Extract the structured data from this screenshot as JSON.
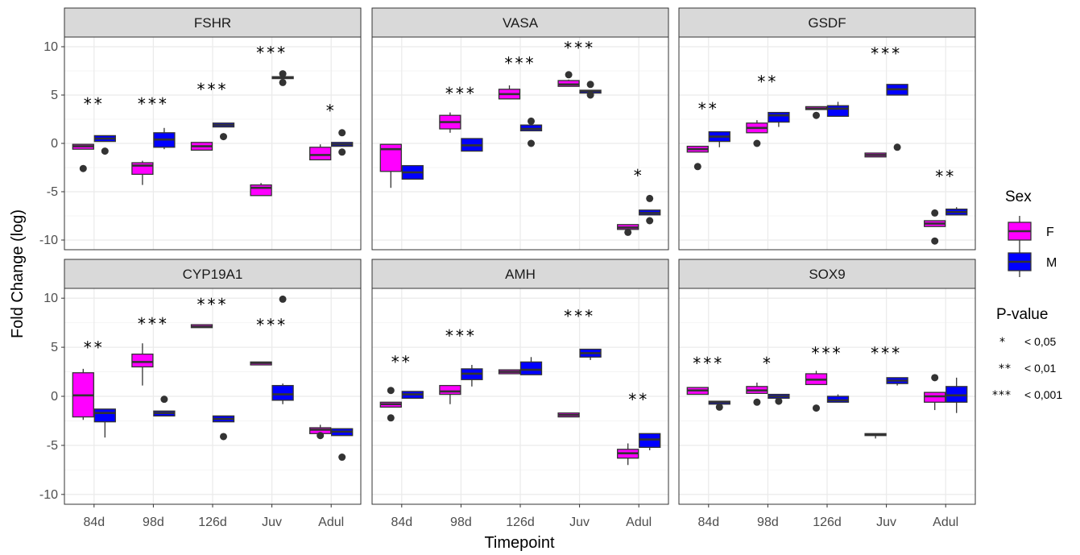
{
  "chart_data": {
    "type": "boxplot",
    "xlabel": "Timepoint",
    "ylabel": "Fold Change (log)",
    "categories": [
      "84d",
      "98d",
      "126d",
      "Juv",
      "Adul"
    ],
    "ylim": [
      -11,
      11
    ],
    "yticks": [
      -10,
      -5,
      0,
      5,
      10
    ],
    "grid": true,
    "colors": {
      "F": "#ff00ff",
      "M": "#0000ff",
      "strip_bg": "#d9d9d9",
      "panel_bg": "#ffffff",
      "grid": "#ebebeb"
    },
    "legend": {
      "title": "Sex",
      "entries": [
        {
          "label": "F",
          "color": "#ff00ff"
        },
        {
          "label": "M",
          "color": "#0000ff"
        }
      ],
      "placement": "right"
    },
    "pvalue_legend": {
      "title": "P-value",
      "entries": [
        {
          "stars": "*",
          "label": "< 0,05"
        },
        {
          "stars": "**",
          "label": "< 0,01"
        },
        {
          "stars": "***",
          "label": "< 0,001"
        }
      ]
    },
    "panels": [
      {
        "name": "FSHR",
        "boxes": {
          "F": [
            {
              "lo": -0.6,
              "q1": -0.6,
              "med": -0.3,
              "q3": -0.1,
              "hi": -0.1,
              "out": [
                -2.6
              ]
            },
            {
              "lo": -4.3,
              "q1": -3.2,
              "med": -2.3,
              "q3": -2.0,
              "hi": -1.8,
              "out": []
            },
            {
              "lo": -0.7,
              "q1": -0.7,
              "med": -0.3,
              "q3": 0.1,
              "hi": 0.1,
              "out": []
            },
            {
              "lo": -5.4,
              "q1": -5.4,
              "med": -4.6,
              "q3": -4.3,
              "hi": -4.1,
              "out": []
            },
            {
              "lo": -1.7,
              "q1": -1.7,
              "med": -1.2,
              "q3": -0.4,
              "hi": -0.1,
              "out": []
            }
          ],
          "M": [
            {
              "lo": 0.2,
              "q1": 0.2,
              "med": 0.5,
              "q3": 0.8,
              "hi": 0.8,
              "out": [
                -0.8
              ]
            },
            {
              "lo": -0.6,
              "q1": -0.4,
              "med": 0.4,
              "q3": 1.1,
              "hi": 1.6,
              "out": []
            },
            {
              "lo": 1.7,
              "q1": 1.7,
              "med": 1.9,
              "q3": 2.1,
              "hi": 2.1,
              "out": [
                0.7
              ]
            },
            {
              "lo": 6.6,
              "q1": 6.7,
              "med": 6.8,
              "q3": 6.9,
              "hi": 7.0,
              "out": [
                6.3,
                7.2
              ]
            },
            {
              "lo": -0.3,
              "q1": -0.3,
              "med": -0.1,
              "q3": 0.1,
              "hi": 0.1,
              "out": [
                1.1,
                -0.9
              ]
            }
          ]
        },
        "sig": [
          "**",
          "***",
          "***",
          "***",
          "*"
        ],
        "sig_y": [
          3.5,
          3.5,
          5.0,
          8.8,
          2.8
        ]
      },
      {
        "name": "VASA",
        "boxes": {
          "F": [
            {
              "lo": -4.6,
              "q1": -2.9,
              "med": -0.6,
              "q3": -0.1,
              "hi": -0.1,
              "out": []
            },
            {
              "lo": 1.1,
              "q1": 1.5,
              "med": 2.2,
              "q3": 2.9,
              "hi": 3.2,
              "out": []
            },
            {
              "lo": 4.6,
              "q1": 4.6,
              "med": 5.1,
              "q3": 5.6,
              "hi": 6.0,
              "out": []
            },
            {
              "lo": 5.9,
              "q1": 5.9,
              "med": 6.1,
              "q3": 6.5,
              "hi": 6.6,
              "out": [
                7.1
              ]
            },
            {
              "lo": -8.9,
              "q1": -8.9,
              "med": -8.7,
              "q3": -8.4,
              "hi": -8.4,
              "out": [
                -9.2
              ]
            }
          ],
          "M": [
            {
              "lo": -3.7,
              "q1": -3.7,
              "med": -3.0,
              "q3": -2.3,
              "hi": -2.3,
              "out": []
            },
            {
              "lo": -0.8,
              "q1": -0.8,
              "med": -0.2,
              "q3": 0.5,
              "hi": 0.5,
              "out": []
            },
            {
              "lo": 1.3,
              "q1": 1.3,
              "med": 1.5,
              "q3": 1.9,
              "hi": 1.9,
              "out": [
                2.3,
                0.0
              ]
            },
            {
              "lo": 5.2,
              "q1": 5.2,
              "med": 5.4,
              "q3": 5.5,
              "hi": 5.5,
              "out": [
                6.1,
                5.0
              ]
            },
            {
              "lo": -7.4,
              "q1": -7.4,
              "med": -7.2,
              "q3": -6.9,
              "hi": -6.9,
              "out": [
                -5.7,
                -8.0
              ]
            }
          ]
        },
        "sig": [
          "",
          "***",
          "***",
          "***",
          "*"
        ],
        "sig_y": [
          0,
          4.6,
          7.7,
          9.3,
          -3.9
        ]
      },
      {
        "name": "GSDF",
        "boxes": {
          "F": [
            {
              "lo": -0.9,
              "q1": -0.9,
              "med": -0.6,
              "q3": -0.3,
              "hi": -0.3,
              "out": [
                -2.4
              ]
            },
            {
              "lo": 1.1,
              "q1": 1.1,
              "med": 1.6,
              "q3": 2.1,
              "hi": 2.4,
              "out": [
                0.0
              ]
            },
            {
              "lo": 3.5,
              "q1": 3.5,
              "med": 3.6,
              "q3": 3.8,
              "hi": 3.8,
              "out": [
                2.9
              ]
            },
            {
              "lo": -1.4,
              "q1": -1.4,
              "med": -1.2,
              "q3": -1.0,
              "hi": -1.0,
              "out": []
            },
            {
              "lo": -8.6,
              "q1": -8.6,
              "med": -8.3,
              "q3": -8.0,
              "hi": -8.0,
              "out": [
                -7.2,
                -10.1
              ]
            }
          ],
          "M": [
            {
              "lo": -0.4,
              "q1": 0.2,
              "med": 0.7,
              "q3": 1.2,
              "hi": 1.2,
              "out": []
            },
            {
              "lo": 1.7,
              "q1": 2.2,
              "med": 2.9,
              "q3": 3.2,
              "hi": 3.2,
              "out": []
            },
            {
              "lo": 2.8,
              "q1": 2.8,
              "med": 3.6,
              "q3": 3.9,
              "hi": 4.3,
              "out": []
            },
            {
              "lo": 5.0,
              "q1": 5.0,
              "med": 5.6,
              "q3": 6.1,
              "hi": 6.1,
              "out": [
                -0.4
              ]
            },
            {
              "lo": -7.4,
              "q1": -7.4,
              "med": -7.1,
              "q3": -6.8,
              "hi": -6.6,
              "out": []
            }
          ]
        },
        "sig": [
          "**",
          "**",
          "",
          "***",
          "**"
        ],
        "sig_y": [
          3.0,
          5.8,
          0,
          8.7,
          -4.0
        ]
      },
      {
        "name": "CYP19A1",
        "boxes": {
          "F": [
            {
              "lo": -2.4,
              "q1": -2.1,
              "med": 0.1,
              "q3": 2.4,
              "hi": 2.8,
              "out": []
            },
            {
              "lo": 1.1,
              "q1": 3.0,
              "med": 3.5,
              "q3": 4.3,
              "hi": 5.4,
              "out": []
            },
            {
              "lo": 7.0,
              "q1": 7.0,
              "med": 7.1,
              "q3": 7.3,
              "hi": 7.3,
              "out": []
            },
            {
              "lo": 3.2,
              "q1": 3.2,
              "med": 3.4,
              "q3": 3.5,
              "hi": 3.5,
              "out": []
            },
            {
              "lo": -3.8,
              "q1": -3.8,
              "med": -3.4,
              "q3": -3.2,
              "hi": -2.9,
              "out": [
                -4.0
              ]
            }
          ],
          "M": [
            {
              "lo": -4.2,
              "q1": -2.6,
              "med": -1.7,
              "q3": -1.3,
              "hi": -1.3,
              "out": []
            },
            {
              "lo": -2.0,
              "q1": -2.0,
              "med": -1.7,
              "q3": -1.5,
              "hi": -1.5,
              "out": [
                -0.3
              ]
            },
            {
              "lo": -2.6,
              "q1": -2.6,
              "med": -2.3,
              "q3": -2.0,
              "hi": -2.0,
              "out": [
                -4.1
              ]
            },
            {
              "lo": -0.8,
              "q1": -0.4,
              "med": 0.2,
              "q3": 1.1,
              "hi": 1.3,
              "out": [
                9.9
              ]
            },
            {
              "lo": -4.0,
              "q1": -4.0,
              "med": -3.6,
              "q3": -3.3,
              "hi": -3.3,
              "out": [
                -6.2
              ]
            }
          ]
        },
        "sig": [
          "**",
          "***",
          "***",
          "***",
          ""
        ],
        "sig_y": [
          4.4,
          6.8,
          8.8,
          6.7,
          0
        ]
      },
      {
        "name": "AMH",
        "boxes": {
          "F": [
            {
              "lo": -1.1,
              "q1": -1.1,
              "med": -0.8,
              "q3": -0.6,
              "hi": -0.6,
              "out": [
                0.6,
                -2.2
              ]
            },
            {
              "lo": -0.8,
              "q1": 0.2,
              "med": 0.5,
              "q3": 1.1,
              "hi": 1.1,
              "out": []
            },
            {
              "lo": 2.3,
              "q1": 2.3,
              "med": 2.5,
              "q3": 2.7,
              "hi": 2.7,
              "out": []
            },
            {
              "lo": -2.1,
              "q1": -2.1,
              "med": -1.9,
              "q3": -1.7,
              "hi": -1.7,
              "out": []
            },
            {
              "lo": -7.0,
              "q1": -6.3,
              "med": -5.8,
              "q3": -5.4,
              "hi": -4.8,
              "out": []
            }
          ],
          "M": [
            {
              "lo": -0.2,
              "q1": -0.2,
              "med": 0.2,
              "q3": 0.5,
              "hi": 0.5,
              "out": []
            },
            {
              "lo": 1.0,
              "q1": 1.7,
              "med": 2.3,
              "q3": 2.8,
              "hi": 3.2,
              "out": []
            },
            {
              "lo": 2.2,
              "q1": 2.2,
              "med": 2.7,
              "q3": 3.5,
              "hi": 4.0,
              "out": []
            },
            {
              "lo": 3.7,
              "q1": 4.0,
              "med": 4.4,
              "q3": 4.8,
              "hi": 4.8,
              "out": []
            },
            {
              "lo": -5.5,
              "q1": -5.2,
              "med": -4.4,
              "q3": -3.8,
              "hi": -3.8,
              "out": []
            }
          ]
        },
        "sig": [
          "**",
          "***",
          "",
          "***",
          "**"
        ],
        "sig_y": [
          2.9,
          5.6,
          0,
          7.6,
          -0.9
        ],
        "sig_x_offset": [
          0,
          0,
          0,
          0,
          0
        ]
      },
      {
        "name": "SOX9",
        "boxes": {
          "F": [
            {
              "lo": 0.2,
              "q1": 0.2,
              "med": 0.6,
              "q3": 0.9,
              "hi": 0.9,
              "out": []
            },
            {
              "lo": 0.3,
              "q1": 0.3,
              "med": 0.6,
              "q3": 1.0,
              "hi": 1.4,
              "out": [
                -0.6
              ]
            },
            {
              "lo": 1.2,
              "q1": 1.2,
              "med": 1.7,
              "q3": 2.3,
              "hi": 2.6,
              "out": [
                -1.2
              ]
            },
            {
              "lo": -4.3,
              "q1": -4.0,
              "med": -3.9,
              "q3": -3.8,
              "hi": -3.8,
              "out": []
            },
            {
              "lo": -1.4,
              "q1": -0.6,
              "med": 0.0,
              "q3": 0.4,
              "hi": 0.4,
              "out": [
                1.9
              ]
            }
          ],
          "M": [
            {
              "lo": -0.8,
              "q1": -0.8,
              "med": -0.6,
              "q3": -0.5,
              "hi": -0.5,
              "out": [
                -1.1
              ]
            },
            {
              "lo": -0.2,
              "q1": -0.2,
              "med": 0.0,
              "q3": 0.2,
              "hi": 0.2,
              "out": [
                -0.5
              ]
            },
            {
              "lo": -0.6,
              "q1": -0.6,
              "med": -0.4,
              "q3": 0.0,
              "hi": 0.2,
              "out": []
            },
            {
              "lo": 1.1,
              "q1": 1.3,
              "med": 1.6,
              "q3": 1.9,
              "hi": 1.9,
              "out": []
            },
            {
              "lo": -1.7,
              "q1": -0.6,
              "med": 0.1,
              "q3": 1.0,
              "hi": 1.9,
              "out": []
            }
          ]
        },
        "sig": [
          "***",
          "*",
          "***",
          "***",
          ""
        ],
        "sig_y": [
          2.8,
          2.8,
          3.8,
          3.8,
          0
        ]
      }
    ]
  }
}
